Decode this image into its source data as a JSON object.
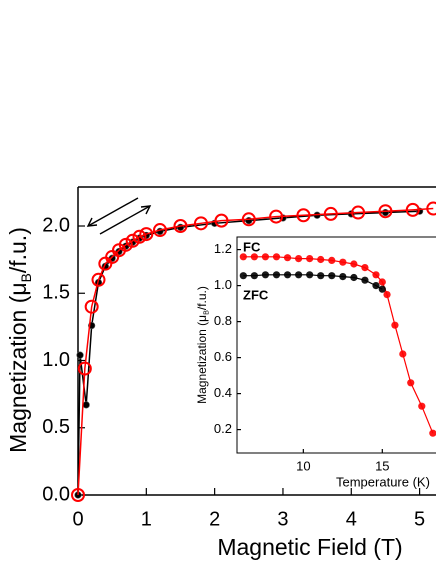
{
  "chart_data": [
    {
      "type": "line",
      "xlabel": "Magnetic Field (T)",
      "ylabel": {
        "prefix": "Magnetization (μ",
        "subscript": "B",
        "suffix": "/f.u.)"
      },
      "xlim": [
        0,
        5.24
      ],
      "ylim": [
        0,
        2.29
      ],
      "xticks": [
        0,
        1,
        2,
        3,
        4,
        5
      ],
      "yticks": [
        {
          "value": 0,
          "label": "0.0"
        },
        0.5,
        {
          "value": 1,
          "label": "1.0"
        },
        1.5,
        {
          "value": 2,
          "label": "2.0"
        }
      ],
      "series": [
        {
          "color": "#000000",
          "marker": "dot",
          "x": [
            0,
            0.03,
            0.12,
            0.2,
            0.3,
            0.4,
            0.5,
            0.6,
            0.7,
            0.8,
            0.9,
            1.0,
            1.2,
            1.5,
            2.0,
            2.5,
            3.0,
            3.5,
            4.0,
            4.5,
            5.0
          ],
          "values": [
            0,
            1.04,
            0.67,
            1.26,
            1.58,
            1.7,
            1.76,
            1.81,
            1.85,
            1.88,
            1.91,
            1.93,
            1.96,
            1.99,
            2.02,
            2.04,
            2.06,
            2.08,
            2.09,
            2.1,
            2.11
          ]
        },
        {
          "color": "#ff0000",
          "marker": "open-circle",
          "x": [
            0,
            0.1,
            0.2,
            0.3,
            0.4,
            0.5,
            0.6,
            0.7,
            0.8,
            0.9,
            1.0,
            1.2,
            1.5,
            1.8,
            2.1,
            2.5,
            2.9,
            3.3,
            3.7,
            4.1,
            4.5,
            4.9,
            5.2
          ],
          "values": [
            0,
            0.94,
            1.4,
            1.6,
            1.72,
            1.77,
            1.82,
            1.86,
            1.89,
            1.92,
            1.94,
            1.97,
            2.0,
            2.02,
            2.04,
            2.05,
            2.07,
            2.08,
            2.09,
            2.1,
            2.11,
            2.12,
            2.13
          ]
        }
      ]
    },
    {
      "type": "line",
      "xlabel": "Temperature (K)",
      "ylabel": {
        "prefix": "Magnetization (μ",
        "subscript": "B",
        "suffix": "/f.u.)"
      },
      "xlim": [
        5.8,
        18.4
      ],
      "ylim": [
        0.07,
        1.27
      ],
      "xticks": [
        10,
        15
      ],
      "yticks": [
        0.2,
        0.4,
        0.6,
        0.8,
        {
          "value": 1,
          "label": "1.0"
        },
        1.2
      ],
      "series": [
        {
          "name": "FC",
          "color": "#ff0000",
          "marker": "ball",
          "x": [
            6.2,
            6.9,
            7.6,
            8.3,
            9.0,
            9.7,
            10.4,
            11.1,
            11.8,
            12.5,
            13.2,
            13.9,
            14.6,
            15.0,
            15.3,
            15.8,
            16.3,
            16.8,
            17.5,
            18.2
          ],
          "values": [
            1.16,
            1.16,
            1.16,
            1.16,
            1.155,
            1.15,
            1.15,
            1.145,
            1.14,
            1.13,
            1.12,
            1.1,
            1.06,
            1.02,
            0.95,
            0.78,
            0.62,
            0.46,
            0.33,
            0.18
          ]
        },
        {
          "name": "ZFC",
          "color": "#000000",
          "marker": "ball",
          "x": [
            6.2,
            6.9,
            7.6,
            8.3,
            9.0,
            9.7,
            10.4,
            11.1,
            11.8,
            12.5,
            13.2,
            13.9,
            14.6,
            15.0
          ],
          "values": [
            1.055,
            1.055,
            1.06,
            1.06,
            1.06,
            1.06,
            1.06,
            1.055,
            1.055,
            1.05,
            1.045,
            1.03,
            1.0,
            0.98
          ]
        }
      ]
    }
  ]
}
